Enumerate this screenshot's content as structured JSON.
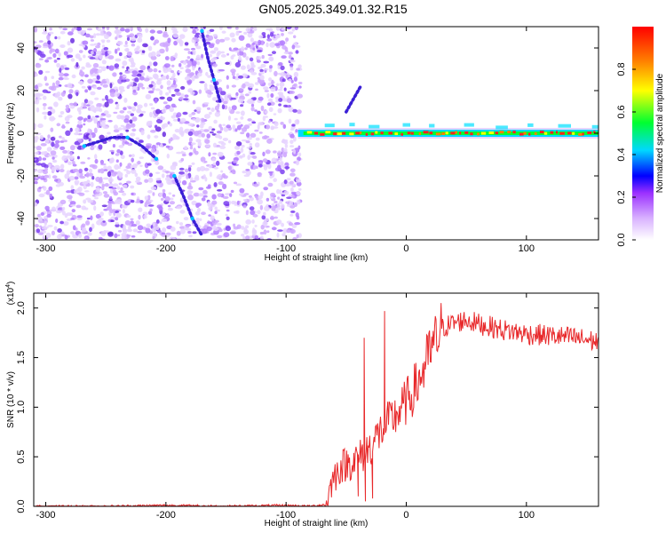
{
  "figure_title": "GN05.2025.349.01.32.R15",
  "colors": {
    "snr_line": "#e8282a",
    "ridge": "#3a1fd6",
    "noise": "#7b3ff0",
    "colormap": [
      "#ffffff",
      "#d9b3ff",
      "#9b30ff",
      "#0000ff",
      "#00d8ff",
      "#00ff30",
      "#ffff00",
      "#ff7f00",
      "#ff0000"
    ]
  },
  "chart_data": [
    {
      "type": "heatmap",
      "title": "",
      "xlabel": "Height of straight line (km)",
      "ylabel": "Frequency (Hz)",
      "xlim": [
        -310,
        160
      ],
      "ylim": [
        -50,
        50
      ],
      "xticks": [
        -300,
        -200,
        -100,
        0,
        100
      ],
      "yticks": [
        -40,
        -20,
        0,
        20,
        40
      ],
      "noise_region_x": [
        -310,
        -88
      ],
      "ridge_frequency": 0,
      "ridge_start_x": -90,
      "colorbar": {
        "label": "Normalized spectral amplitude",
        "range": [
          0,
          1
        ],
        "ticks": [
          0.0,
          0.2,
          0.4,
          0.6,
          0.8
        ]
      },
      "trace_curves": [
        {
          "name": "descending-trace-upper",
          "points": [
            [
              -170,
              48
            ],
            [
              -165,
              35
            ],
            [
              -160,
              25
            ],
            [
              -155,
              15
            ]
          ]
        },
        {
          "name": "hump-trace",
          "points": [
            [
              -268,
              -6
            ],
            [
              -245,
              -2
            ],
            [
              -232,
              -2
            ],
            [
              -220,
              -6
            ],
            [
              -208,
              -12
            ]
          ]
        },
        {
          "name": "descending-trace-lower",
          "points": [
            [
              -193,
              -20
            ],
            [
              -185,
              -30
            ],
            [
              -178,
              -40
            ],
            [
              -170,
              -48
            ]
          ]
        },
        {
          "name": "branch-trace",
          "points": [
            [
              -50,
              10
            ],
            [
              -44,
              16
            ],
            [
              -38,
              22
            ]
          ]
        }
      ]
    },
    {
      "type": "line",
      "title": "",
      "xlabel": "Height of straight line (km)",
      "ylabel": "SNR (10 * v/v)",
      "y_multiplier_label": "(x10",
      "y_multiplier_exp": "4",
      "xlim": [
        -310,
        160
      ],
      "ylim": [
        0,
        2.15
      ],
      "xticks": [
        -300,
        -200,
        -100,
        0,
        100
      ],
      "yticks": [
        0.0,
        0.5,
        1.0,
        1.5,
        2.0
      ],
      "series": [
        {
          "name": "SNR",
          "x": [
            -310,
            -250,
            -200,
            -150,
            -100,
            -80,
            -66,
            -62,
            -55,
            -45,
            -38,
            -30,
            -20,
            -10,
            0,
            10,
            20,
            30,
            40,
            50,
            60,
            80,
            100,
            120,
            140,
            160
          ],
          "values": [
            0.0,
            0.0,
            0.01,
            0.0,
            0.01,
            0.0,
            0.02,
            0.25,
            0.4,
            0.45,
            0.5,
            0.6,
            0.78,
            0.9,
            1.05,
            1.25,
            1.55,
            1.8,
            1.85,
            1.88,
            1.84,
            1.78,
            1.74,
            1.72,
            1.7,
            1.66
          ]
        }
      ],
      "spikes": [
        [
          -35,
          1.7
        ],
        [
          -34,
          0.05
        ],
        [
          -18,
          1.97
        ],
        [
          -40,
          0.1
        ],
        [
          -28,
          0.08
        ]
      ]
    }
  ]
}
